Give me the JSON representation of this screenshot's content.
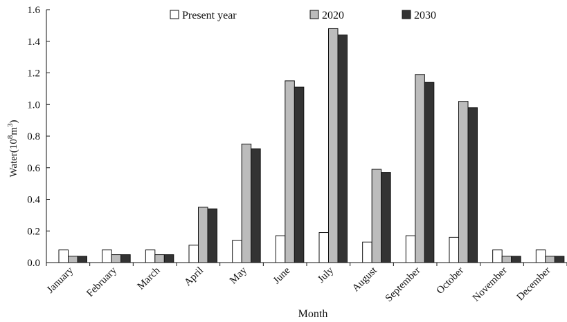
{
  "chart_data": {
    "type": "bar",
    "title": "",
    "xlabel": "Month",
    "ylabel": "Water(10^8 m^3)",
    "ylabel_parts": {
      "base": "Water(10",
      "exp1": "8",
      "mid": "m",
      "exp2": "3",
      "end": ")"
    },
    "ylim": [
      0,
      1.6
    ],
    "yticks": [
      0.0,
      0.2,
      0.4,
      0.6,
      0.8,
      1.0,
      1.2,
      1.4,
      1.6
    ],
    "ytick_labels": [
      "0.0",
      "0.2",
      "0.4",
      "0.6",
      "0.8",
      "1.0",
      "1.2",
      "1.4",
      "1.6"
    ],
    "grid": false,
    "legend_position": "top",
    "categories": [
      "January",
      "February",
      "March",
      "April",
      "May",
      "June",
      "July",
      "August",
      "September",
      "October",
      "November",
      "December"
    ],
    "series": [
      {
        "name": "Present year",
        "color": "#ffffff",
        "values": [
          0.08,
          0.08,
          0.08,
          0.11,
          0.14,
          0.17,
          0.19,
          0.13,
          0.17,
          0.16,
          0.08,
          0.08
        ]
      },
      {
        "name": "2020",
        "color": "#bcbcbc",
        "values": [
          0.04,
          0.05,
          0.05,
          0.35,
          0.75,
          1.15,
          1.48,
          0.59,
          1.19,
          1.02,
          0.04,
          0.04
        ]
      },
      {
        "name": "2030",
        "color": "#333333",
        "values": [
          0.04,
          0.05,
          0.05,
          0.34,
          0.72,
          1.11,
          1.44,
          0.57,
          1.14,
          0.98,
          0.04,
          0.04
        ]
      }
    ]
  }
}
